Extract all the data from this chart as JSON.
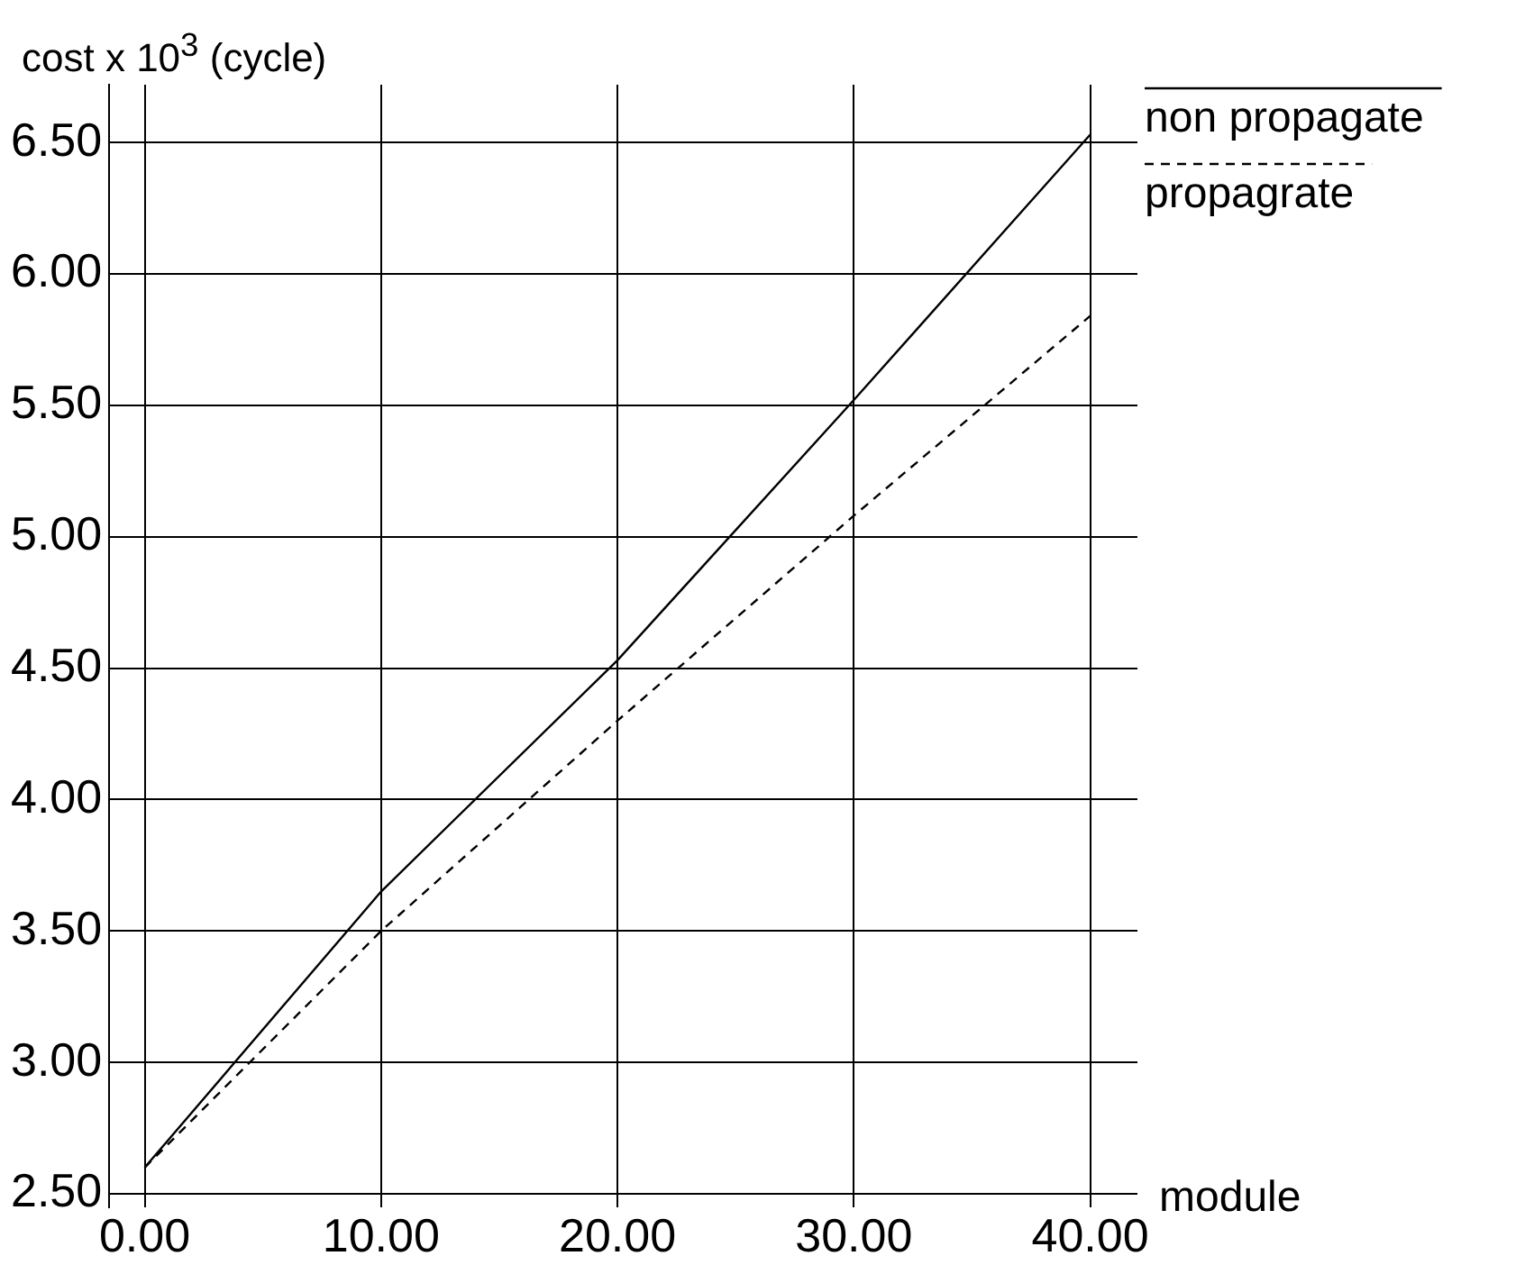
{
  "chart_data": {
    "type": "line",
    "ylabel": "cost x 10$^{3}$ (cycle)",
    "xlabel": "module",
    "x": [
      0,
      10,
      20,
      30,
      40
    ],
    "series": [
      {
        "name": "non propagate",
        "color": "#000000",
        "line_style": "solid",
        "values": [
          2.6,
          3.65,
          4.53,
          5.52,
          6.53
        ]
      },
      {
        "name": "propagrate",
        "color": "#000000",
        "line_style": "dashed",
        "values": [
          2.6,
          3.5,
          4.3,
          5.08,
          5.84
        ]
      }
    ],
    "xlim": [
      -1.5,
      42
    ],
    "ylim": [
      2.45,
      6.72
    ],
    "xticks": [
      {
        "value": 0,
        "label": "0.00"
      },
      {
        "value": 10,
        "label": "10.00"
      },
      {
        "value": 20,
        "label": "20.00"
      },
      {
        "value": 30,
        "label": "30.00"
      },
      {
        "value": 40,
        "label": "40.00"
      }
    ],
    "yticks": [
      {
        "value": 2.5,
        "label": "2.50"
      },
      {
        "value": 3,
        "label": "3.00"
      },
      {
        "value": 3.5,
        "label": "3.50"
      },
      {
        "value": 4,
        "label": "4.00"
      },
      {
        "value": 4.5,
        "label": "4.50"
      },
      {
        "value": 5,
        "label": "5.00"
      },
      {
        "value": 5.5,
        "label": "5.50"
      },
      {
        "value": 6,
        "label": "6.00"
      },
      {
        "value": 6.5,
        "label": "6.50"
      }
    ],
    "grid": true,
    "legend": "top right",
    "marker": "none"
  }
}
